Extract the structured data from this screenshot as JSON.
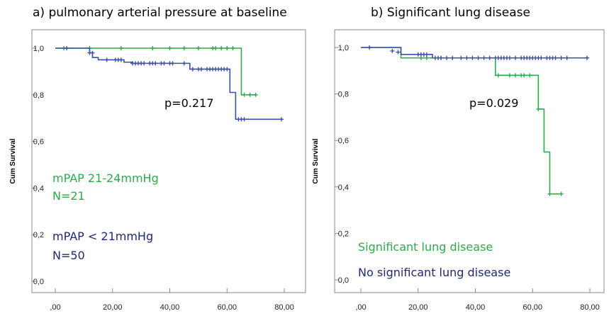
{
  "chart_data": [
    {
      "type": "line",
      "title": "a) pulmonary arterial pressure at baseline",
      "ylabel": "Cum Survival",
      "xlabel": "",
      "xlim": [
        0,
        80
      ],
      "ylim": [
        0,
        1
      ],
      "x_tick_labels": [
        ",00",
        "20,00",
        "40,00",
        "60,00",
        "80,00"
      ],
      "y_tick_labels": [
        "0,0",
        "0,2",
        "0,4",
        "0,6",
        "0,8",
        "1,0"
      ],
      "annotation": "p=0.217",
      "series": [
        {
          "name": "mPAP 21-24mmHg",
          "count_label": "N=21",
          "color": "#2eaa4a",
          "steps": [
            [
              0,
              1.0
            ],
            [
              65,
              0.8
            ],
            [
              70,
              0.8
            ]
          ],
          "censored": [
            [
              3,
              1.0
            ],
            [
              12,
              1.0
            ],
            [
              23,
              1.0
            ],
            [
              34,
              1.0
            ],
            [
              40,
              1.0
            ],
            [
              45,
              1.0
            ],
            [
              50,
              1.0
            ],
            [
              55,
              1.0
            ],
            [
              56,
              1.0
            ],
            [
              58,
              1.0
            ],
            [
              60,
              1.0
            ],
            [
              62,
              1.0
            ],
            [
              66,
              0.8
            ],
            [
              68,
              0.8
            ],
            [
              70,
              0.8
            ]
          ]
        },
        {
          "name": "mPAP < 21mmHg",
          "count_label": "N=50",
          "color": "#3c4fa8",
          "steps": [
            [
              0,
              1.0
            ],
            [
              12,
              0.98
            ],
            [
              13,
              0.96
            ],
            [
              15,
              0.95
            ],
            [
              24,
              0.94
            ],
            [
              27,
              0.935
            ],
            [
              47,
              0.91
            ],
            [
              61,
              0.81
            ],
            [
              63,
              0.695
            ],
            [
              79,
              0.695
            ]
          ],
          "censored": [
            [
              4,
              1.0
            ],
            [
              12,
              0.98
            ],
            [
              13,
              0.98
            ],
            [
              18,
              0.95
            ],
            [
              21,
              0.95
            ],
            [
              22,
              0.95
            ],
            [
              23,
              0.95
            ],
            [
              27,
              0.935
            ],
            [
              28,
              0.935
            ],
            [
              29,
              0.935
            ],
            [
              30,
              0.935
            ],
            [
              31,
              0.935
            ],
            [
              33,
              0.935
            ],
            [
              34,
              0.935
            ],
            [
              35,
              0.935
            ],
            [
              37,
              0.935
            ],
            [
              38,
              0.935
            ],
            [
              40,
              0.935
            ],
            [
              41,
              0.935
            ],
            [
              45,
              0.935
            ],
            [
              48,
              0.91
            ],
            [
              50,
              0.91
            ],
            [
              51,
              0.91
            ],
            [
              53,
              0.91
            ],
            [
              54,
              0.91
            ],
            [
              55,
              0.91
            ],
            [
              56,
              0.91
            ],
            [
              57,
              0.91
            ],
            [
              58,
              0.91
            ],
            [
              59,
              0.91
            ],
            [
              60,
              0.91
            ],
            [
              64,
              0.695
            ],
            [
              65,
              0.695
            ],
            [
              66,
              0.695
            ],
            [
              79,
              0.695
            ]
          ]
        }
      ]
    },
    {
      "type": "line",
      "title": "b) Significant lung disease",
      "ylabel": "Cum Survival",
      "xlabel": "",
      "xlim": [
        0,
        80
      ],
      "ylim": [
        0,
        1
      ],
      "x_tick_labels": [
        ",00",
        "20,00",
        "40,00",
        "60,00",
        "80,00"
      ],
      "y_tick_labels": [
        "0,0",
        "0,2",
        "0,4",
        "0,6",
        "0,8",
        "1,0"
      ],
      "annotation": "p=0.029",
      "series": [
        {
          "name": "Significant lung disease",
          "color": "#2eaa4a",
          "steps": [
            [
              0,
              1.0
            ],
            [
              14,
              0.955
            ],
            [
              47,
              0.88
            ],
            [
              62,
              0.735
            ],
            [
              64,
              0.55
            ],
            [
              66,
              0.37
            ],
            [
              70,
              0.37
            ]
          ],
          "censored": [
            [
              21,
              0.955
            ],
            [
              23,
              0.955
            ],
            [
              28,
              0.955
            ],
            [
              48,
              0.88
            ],
            [
              52,
              0.88
            ],
            [
              54,
              0.88
            ],
            [
              56,
              0.88
            ],
            [
              57,
              0.88
            ],
            [
              59,
              0.88
            ],
            [
              62,
              0.735
            ],
            [
              66,
              0.37
            ],
            [
              70,
              0.37
            ]
          ]
        },
        {
          "name": "No significant lung disease",
          "color": "#3c4fa8",
          "steps": [
            [
              0,
              1.0
            ],
            [
              14,
              0.97
            ],
            [
              25,
              0.955
            ],
            [
              79,
              0.955
            ]
          ],
          "censored": [
            [
              3,
              1.0
            ],
            [
              11,
              0.985
            ],
            [
              13,
              0.98
            ],
            [
              20,
              0.97
            ],
            [
              21,
              0.97
            ],
            [
              22,
              0.97
            ],
            [
              23,
              0.97
            ],
            [
              26,
              0.955
            ],
            [
              27,
              0.955
            ],
            [
              28,
              0.955
            ],
            [
              30,
              0.955
            ],
            [
              32,
              0.955
            ],
            [
              35,
              0.955
            ],
            [
              37,
              0.955
            ],
            [
              39,
              0.955
            ],
            [
              41,
              0.955
            ],
            [
              43,
              0.955
            ],
            [
              45,
              0.955
            ],
            [
              47,
              0.955
            ],
            [
              48,
              0.955
            ],
            [
              49,
              0.955
            ],
            [
              50,
              0.955
            ],
            [
              51,
              0.955
            ],
            [
              52,
              0.955
            ],
            [
              54,
              0.955
            ],
            [
              56,
              0.955
            ],
            [
              57,
              0.955
            ],
            [
              58,
              0.955
            ],
            [
              59,
              0.955
            ],
            [
              60,
              0.955
            ],
            [
              61,
              0.955
            ],
            [
              62,
              0.955
            ],
            [
              63,
              0.955
            ],
            [
              65,
              0.955
            ],
            [
              66,
              0.955
            ],
            [
              67,
              0.955
            ],
            [
              68,
              0.955
            ],
            [
              70,
              0.955
            ],
            [
              72,
              0.955
            ],
            [
              79,
              0.955
            ]
          ]
        }
      ]
    }
  ]
}
